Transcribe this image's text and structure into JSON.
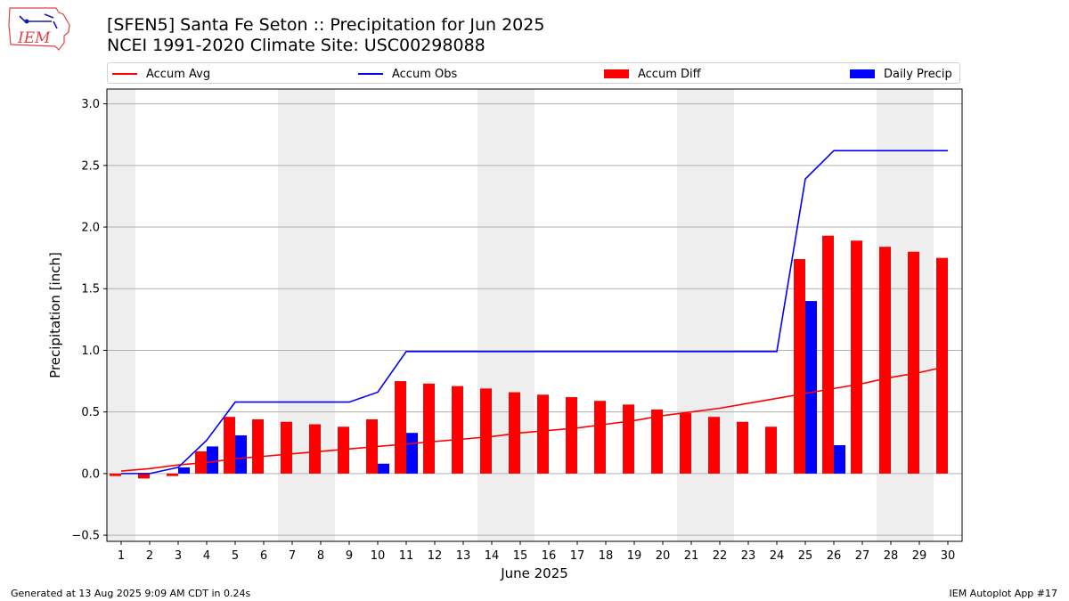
{
  "header": {
    "logo_text": "IEM",
    "title_line1": "[SFEN5] Santa Fe Seton :: Precipitation for Jun 2025",
    "title_line2": "NCEI 1991-2020 Climate Site: USC00298088"
  },
  "footer": {
    "generated": "Generated at 13 Aug 2025 9:09 AM CDT in 0.24s",
    "app": "IEM Autoplot App #17"
  },
  "colors": {
    "accum_avg": "#ff0000",
    "accum_obs": "#0000ff",
    "accum_diff": "#ff0000",
    "daily_precip": "#0000ff",
    "weekend_band": "#eeeeee",
    "grid": "#b0b0b0"
  },
  "chart_data": {
    "type": "bar",
    "xlabel": "June 2025",
    "ylabel": "Precipitation [inch]",
    "ylim": [
      -0.55,
      3.12
    ],
    "xlim": [
      0.5,
      30.5
    ],
    "yticks": [
      -0.5,
      0.0,
      0.5,
      1.0,
      1.5,
      2.0,
      2.5,
      3.0
    ],
    "ytick_labels": [
      "−0.5",
      "0.0",
      "0.5",
      "1.0",
      "1.5",
      "2.0",
      "2.5",
      "3.0"
    ],
    "grid": "horizontal",
    "legend_position": "top",
    "legend": [
      "Accum Avg",
      "Accum Obs",
      "Accum Diff",
      "Daily Precip"
    ],
    "days": [
      1,
      2,
      3,
      4,
      5,
      6,
      7,
      8,
      9,
      10,
      11,
      12,
      13,
      14,
      15,
      16,
      17,
      18,
      19,
      20,
      21,
      22,
      23,
      24,
      25,
      26,
      27,
      28,
      29,
      30
    ],
    "weekend_bands": [
      [
        0.5,
        1.5
      ],
      [
        6.5,
        8.5
      ],
      [
        13.5,
        15.5
      ],
      [
        20.5,
        22.5
      ],
      [
        27.5,
        29.5
      ]
    ],
    "series": [
      {
        "name": "Accum Avg",
        "kind": "line",
        "values": [
          0.02,
          0.04,
          0.07,
          0.09,
          0.12,
          0.14,
          0.16,
          0.18,
          0.2,
          0.22,
          0.24,
          0.26,
          0.28,
          0.3,
          0.33,
          0.35,
          0.37,
          0.4,
          0.43,
          0.47,
          0.5,
          0.53,
          0.57,
          0.61,
          0.65,
          0.69,
          0.73,
          0.78,
          0.82,
          0.87
        ]
      },
      {
        "name": "Accum Obs",
        "kind": "line",
        "values": [
          0.0,
          0.0,
          0.05,
          0.27,
          0.58,
          0.58,
          0.58,
          0.58,
          0.58,
          0.66,
          0.99,
          0.99,
          0.99,
          0.99,
          0.99,
          0.99,
          0.99,
          0.99,
          0.99,
          0.99,
          0.99,
          0.99,
          0.99,
          0.99,
          2.39,
          2.62,
          2.62,
          2.62,
          2.62,
          2.62
        ]
      },
      {
        "name": "Accum Diff",
        "kind": "bar",
        "values": [
          -0.02,
          -0.04,
          -0.02,
          0.18,
          0.46,
          0.44,
          0.42,
          0.4,
          0.38,
          0.44,
          0.75,
          0.73,
          0.71,
          0.69,
          0.66,
          0.64,
          0.62,
          0.59,
          0.56,
          0.52,
          0.49,
          0.46,
          0.42,
          0.38,
          1.74,
          1.93,
          1.89,
          1.84,
          1.8,
          1.75
        ]
      },
      {
        "name": "Daily Precip",
        "kind": "bar",
        "values": [
          0,
          0,
          0.05,
          0.22,
          0.31,
          0,
          0,
          0,
          0,
          0.08,
          0.33,
          0,
          0,
          0,
          0,
          0,
          0,
          0,
          0,
          0,
          0,
          0,
          0,
          0,
          1.4,
          0.23,
          0,
          0,
          0,
          0
        ]
      }
    ]
  }
}
